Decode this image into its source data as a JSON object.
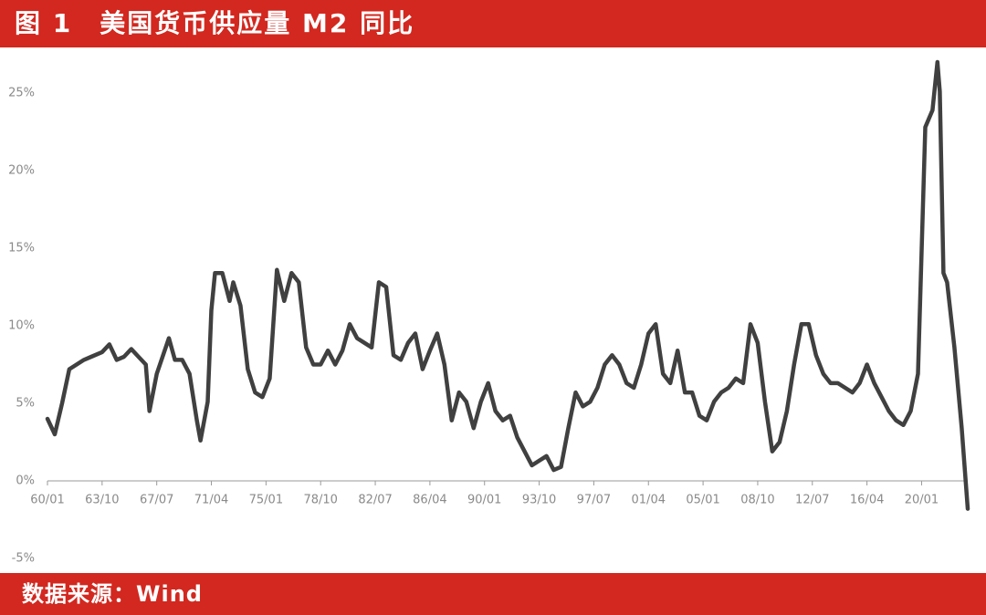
{
  "title": "图 1　美国货币供应量 M2 同比",
  "source": "数据来源：Wind",
  "chart_data": {
    "type": "line",
    "x": [
      "60/01",
      "60/07",
      "61/01",
      "61/07",
      "62/01",
      "62/07",
      "63/01",
      "63/10",
      "64/04",
      "64/10",
      "65/04",
      "65/10",
      "66/04",
      "66/10",
      "67/01",
      "67/07",
      "68/05",
      "68/10",
      "69/04",
      "69/10",
      "70/04",
      "70/07",
      "71/01",
      "71/04",
      "71/07",
      "72/01",
      "72/07",
      "72/10",
      "73/04",
      "73/10",
      "74/04",
      "74/10",
      "75/04",
      "75/10",
      "76/04",
      "76/10",
      "77/04",
      "77/10",
      "78/04",
      "78/10",
      "79/04",
      "79/10",
      "80/04",
      "80/10",
      "81/04",
      "81/10",
      "82/04",
      "82/10",
      "83/04",
      "83/10",
      "84/04",
      "84/10",
      "85/04",
      "85/10",
      "86/04",
      "86/10",
      "87/04",
      "87/10",
      "88/04",
      "88/10",
      "89/04",
      "89/10",
      "90/04",
      "90/10",
      "91/04",
      "91/10",
      "92/04",
      "92/10",
      "93/04",
      "93/10",
      "94/04",
      "94/10",
      "95/04",
      "95/10",
      "96/04",
      "96/10",
      "97/04",
      "97/10",
      "98/04",
      "98/10",
      "99/04",
      "99/10",
      "00/04",
      "00/10",
      "01/04",
      "01/10",
      "02/04",
      "02/10",
      "03/04",
      "03/10",
      "04/04",
      "04/10",
      "05/04",
      "05/10",
      "06/04",
      "06/10",
      "07/04",
      "07/10",
      "08/04",
      "08/10",
      "09/04",
      "09/10",
      "10/04",
      "10/10",
      "11/04",
      "11/10",
      "12/04",
      "12/10",
      "13/04",
      "13/10",
      "14/04",
      "14/10",
      "15/04",
      "15/10",
      "16/04",
      "16/10",
      "17/04",
      "17/10",
      "18/04",
      "18/10",
      "19/04",
      "19/10",
      "20/04",
      "20/10",
      "21/02",
      "21/04",
      "21/07",
      "21/10",
      "22/04",
      "22/10",
      "23/03"
    ],
    "series": [
      {
        "name": "M2同比",
        "color": "#404040",
        "values": [
          4.0,
          3.0,
          5.0,
          7.2,
          7.5,
          7.8,
          8.0,
          8.3,
          8.8,
          7.8,
          8.0,
          8.5,
          8.0,
          7.5,
          4.5,
          6.9,
          9.2,
          7.8,
          7.8,
          6.9,
          3.9,
          2.6,
          5.1,
          11.0,
          13.4,
          13.4,
          11.6,
          12.8,
          11.3,
          7.2,
          5.7,
          5.4,
          6.6,
          13.6,
          11.6,
          13.4,
          12.8,
          8.6,
          7.5,
          7.5,
          8.4,
          7.5,
          8.4,
          10.1,
          9.2,
          8.9,
          8.6,
          12.8,
          12.5,
          8.1,
          7.8,
          8.9,
          9.5,
          7.2,
          8.4,
          9.5,
          7.5,
          3.9,
          5.7,
          5.1,
          3.4,
          5.1,
          6.3,
          4.5,
          3.9,
          4.2,
          2.8,
          1.9,
          1.0,
          1.3,
          1.6,
          0.7,
          0.9,
          3.4,
          5.7,
          4.8,
          5.1,
          6.0,
          7.5,
          8.1,
          7.5,
          6.3,
          6.0,
          7.5,
          9.5,
          10.1,
          6.9,
          6.3,
          8.4,
          5.7,
          5.7,
          4.2,
          3.9,
          5.1,
          5.7,
          6.0,
          6.6,
          6.3,
          10.1,
          8.9,
          5.1,
          1.9,
          2.5,
          4.5,
          7.5,
          10.1,
          10.1,
          8.1,
          6.9,
          6.3,
          6.3,
          6.0,
          5.7,
          6.3,
          7.5,
          6.3,
          5.4,
          4.5,
          3.9,
          3.6,
          4.5,
          6.9,
          22.8,
          23.9,
          27.0,
          25.1,
          13.4,
          12.8,
          8.6,
          3.4,
          -1.8
        ]
      }
    ],
    "xticks": [
      "60/01",
      "63/10",
      "67/07",
      "71/04",
      "75/01",
      "78/10",
      "82/07",
      "86/04",
      "90/01",
      "93/10",
      "97/07",
      "01/04",
      "05/01",
      "08/10",
      "12/07",
      "16/04",
      "20/01"
    ],
    "ylim": [
      -5,
      28
    ],
    "yticks": [
      {
        "value": -5,
        "label": "-5%"
      },
      {
        "value": 0,
        "label": "0%"
      },
      {
        "value": 5,
        "label": "5%"
      },
      {
        "value": 10,
        "label": "10%"
      },
      {
        "value": 15,
        "label": "15%"
      },
      {
        "value": 20,
        "label": "20%"
      },
      {
        "value": 25,
        "label": "25%"
      }
    ]
  }
}
